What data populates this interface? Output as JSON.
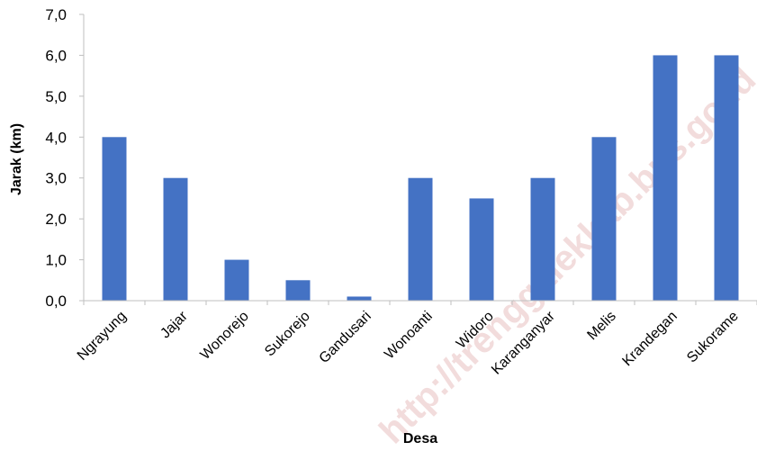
{
  "chart_data": {
    "type": "bar",
    "title": "",
    "xlabel": "Desa",
    "ylabel": "Jarak (km)",
    "categories": [
      "Ngrayung",
      "Jajar",
      "Wonorejo",
      "Sukorejo",
      "Gandusari",
      "Wonoanti",
      "Widoro",
      "Karanganyar",
      "Melis",
      "Krandegan",
      "Sukorame"
    ],
    "values": [
      4.0,
      3.0,
      1.0,
      0.5,
      0.1,
      3.0,
      2.5,
      3.0,
      4.0,
      6.0,
      6.0
    ],
    "ylim": [
      0,
      7
    ],
    "yticks": [
      "0,0",
      "1,0",
      "2,0",
      "3,0",
      "4,0",
      "5,0",
      "6,0",
      "7,0"
    ],
    "grid": false,
    "legend": "none",
    "bar_color": "#4472C4"
  },
  "watermark": {
    "text": "http://trenggalekkab.bps.go.id",
    "color": "#F2DCDC"
  }
}
